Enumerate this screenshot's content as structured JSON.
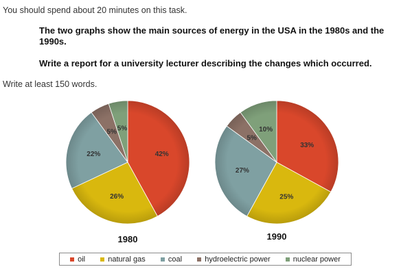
{
  "header": {
    "instruction": "You should spend about 20 minutes on this task.",
    "task_text": "The two graphs show the main sources of energy in the USA in the 1980s and the 1990s.",
    "report_text": "Write a report for a university lecturer describing the changes which occurred.",
    "word_count": "Write at least 150 words."
  },
  "colors": {
    "oil": "#d9472b",
    "natural gas": "#d9b80e",
    "coal": "#7fa0a2",
    "hydroelectric power": "#8c7166",
    "nuclear power": "#7fa07a"
  },
  "legend": [
    "oil",
    "natural gas",
    "coal",
    "hydroelectric power",
    "nuclear power"
  ],
  "chart_data": [
    {
      "type": "pie",
      "title": "1980",
      "categories": [
        "oil",
        "natural gas",
        "coal",
        "hydroelectric power",
        "nuclear power"
      ],
      "values": [
        42,
        26,
        22,
        5,
        5
      ],
      "labels": [
        "42%",
        "26%",
        "22%",
        "5%",
        "5%"
      ],
      "legend_placement": "bottom"
    },
    {
      "type": "pie",
      "title": "1990",
      "categories": [
        "oil",
        "natural gas",
        "coal",
        "hydroelectric power",
        "nuclear power"
      ],
      "values": [
        33,
        25,
        27,
        5,
        10
      ],
      "labels": [
        "33%",
        "25%",
        "27%",
        "5%",
        "10%"
      ],
      "legend_placement": "bottom"
    }
  ]
}
